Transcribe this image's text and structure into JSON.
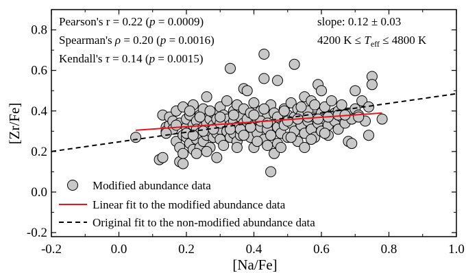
{
  "chart_data": {
    "type": "scatter",
    "xlabel": "[Na/Fe]",
    "ylabel": "[Zr/Fe]",
    "xlim": [
      -0.2,
      1.0
    ],
    "ylim": [
      -0.22,
      0.9
    ],
    "xticks": [
      -0.2,
      0.0,
      0.2,
      0.4,
      0.6,
      0.8,
      1.0
    ],
    "yticks": [
      -0.2,
      0.0,
      0.2,
      0.4,
      0.6,
      0.8
    ],
    "xtick_labels": [
      "-0.2",
      "0.0",
      "0.2",
      "0.4",
      "0.6",
      "0.8",
      "1.0"
    ],
    "ytick_labels": [
      "-0.2",
      "0.0",
      "0.2",
      "0.4",
      "0.6",
      "0.8"
    ],
    "grid": false,
    "annotations": {
      "pearson": "Pearson's r = 0.22 (p = 0.0009)",
      "spearman": "Spearman's ρ = 0.20 (p = 0.0016)",
      "kendall": "Kendall's τ = 0.14 (p = 0.0015)",
      "slope": "slope: 0.12 ± 0.03",
      "teff_range": "4200 K ≤ Teff ≤ 4800 K"
    },
    "legend": {
      "placement": "bottom-left",
      "entries": [
        "Modified abundance data",
        "Linear fit to the modified abundance data",
        "Original fit to the non-modified abundance data"
      ]
    },
    "colors": {
      "points_fill": "#c8c8c8",
      "points_edge": "#000000",
      "linear_fit": "#e8141b",
      "original_fit": "#000000"
    },
    "linear_fit": {
      "x": [
        0.05,
        0.78
      ],
      "y": [
        0.305,
        0.39
      ]
    },
    "original_fit": {
      "x": [
        -0.2,
        1.0
      ],
      "y": [
        0.2,
        0.485
      ]
    },
    "series": [
      {
        "name": "Modified abundance data",
        "points": [
          [
            0.05,
            0.27
          ],
          [
            0.12,
            0.16
          ],
          [
            0.13,
            0.17
          ],
          [
            0.13,
            0.38
          ],
          [
            0.14,
            0.32
          ],
          [
            0.14,
            0.3
          ],
          [
            0.15,
            0.33
          ],
          [
            0.15,
            0.37
          ],
          [
            0.16,
            0.35
          ],
          [
            0.16,
            0.31
          ],
          [
            0.17,
            0.25
          ],
          [
            0.17,
            0.4
          ],
          [
            0.18,
            0.22
          ],
          [
            0.18,
            0.34
          ],
          [
            0.18,
            0.15
          ],
          [
            0.19,
            0.19
          ],
          [
            0.19,
            0.28
          ],
          [
            0.19,
            0.14
          ],
          [
            0.2,
            0.32
          ],
          [
            0.2,
            0.36
          ],
          [
            0.2,
            0.27
          ],
          [
            0.21,
            0.24
          ],
          [
            0.21,
            0.3
          ],
          [
            0.21,
            0.38
          ],
          [
            0.22,
            0.21
          ],
          [
            0.22,
            0.33
          ],
          [
            0.22,
            0.43
          ],
          [
            0.23,
            0.26
          ],
          [
            0.23,
            0.35
          ],
          [
            0.23,
            0.31
          ],
          [
            0.24,
            0.22
          ],
          [
            0.24,
            0.29
          ],
          [
            0.24,
            0.38
          ],
          [
            0.25,
            0.32
          ],
          [
            0.25,
            0.41
          ],
          [
            0.25,
            0.25
          ],
          [
            0.26,
            0.34
          ],
          [
            0.26,
            0.28
          ],
          [
            0.26,
            0.47
          ],
          [
            0.27,
            0.22
          ],
          [
            0.27,
            0.36
          ],
          [
            0.27,
            0.3
          ],
          [
            0.28,
            0.27
          ],
          [
            0.28,
            0.39
          ],
          [
            0.28,
            0.33
          ],
          [
            0.29,
            0.29
          ],
          [
            0.29,
            0.36
          ],
          [
            0.29,
            0.17
          ],
          [
            0.3,
            0.31
          ],
          [
            0.3,
            0.42
          ],
          [
            0.3,
            0.26
          ],
          [
            0.31,
            0.34
          ],
          [
            0.31,
            0.38
          ],
          [
            0.31,
            0.23
          ],
          [
            0.32,
            0.3
          ],
          [
            0.32,
            0.45
          ],
          [
            0.32,
            0.36
          ],
          [
            0.33,
            0.27
          ],
          [
            0.33,
            0.33
          ],
          [
            0.33,
            0.61
          ],
          [
            0.34,
            0.4
          ],
          [
            0.34,
            0.29
          ],
          [
            0.34,
            0.35
          ],
          [
            0.35,
            0.25
          ],
          [
            0.35,
            0.43
          ],
          [
            0.35,
            0.32
          ],
          [
            0.36,
            0.37
          ],
          [
            0.36,
            0.28
          ],
          [
            0.37,
            0.34
          ],
          [
            0.37,
            0.41
          ],
          [
            0.37,
            0.51
          ],
          [
            0.38,
            0.3
          ],
          [
            0.38,
            0.36
          ],
          [
            0.38,
            0.5
          ],
          [
            0.39,
            0.27
          ],
          [
            0.39,
            0.39
          ],
          [
            0.4,
            0.33
          ],
          [
            0.4,
            0.44
          ],
          [
            0.4,
            0.22
          ],
          [
            0.41,
            0.36
          ],
          [
            0.41,
            0.29
          ],
          [
            0.42,
            0.4
          ],
          [
            0.42,
            0.32
          ],
          [
            0.43,
            0.68
          ],
          [
            0.43,
            0.56
          ],
          [
            0.43,
            0.26
          ],
          [
            0.44,
            0.37
          ],
          [
            0.44,
            0.31
          ],
          [
            0.45,
            0.43
          ],
          [
            0.45,
            0.28
          ],
          [
            0.45,
            0.1
          ],
          [
            0.46,
            0.35
          ],
          [
            0.46,
            0.39
          ],
          [
            0.46,
            0.19
          ],
          [
            0.47,
            0.32
          ],
          [
            0.47,
            0.55
          ],
          [
            0.47,
            0.24
          ],
          [
            0.48,
            0.36
          ],
          [
            0.48,
            0.29
          ],
          [
            0.49,
            0.41
          ],
          [
            0.49,
            0.33
          ],
          [
            0.5,
            0.27
          ],
          [
            0.5,
            0.38
          ],
          [
            0.51,
            0.34
          ],
          [
            0.51,
            0.44
          ],
          [
            0.52,
            0.63
          ],
          [
            0.52,
            0.3
          ],
          [
            0.52,
            0.37
          ],
          [
            0.53,
            0.25
          ],
          [
            0.53,
            0.41
          ],
          [
            0.54,
            0.33
          ],
          [
            0.54,
            0.38
          ],
          [
            0.55,
            0.29
          ],
          [
            0.55,
            0.47
          ],
          [
            0.55,
            0.22
          ],
          [
            0.56,
            0.35
          ],
          [
            0.56,
            0.4
          ],
          [
            0.57,
            0.31
          ],
          [
            0.57,
            0.45
          ],
          [
            0.58,
            0.37
          ],
          [
            0.58,
            0.27
          ],
          [
            0.59,
            0.53
          ],
          [
            0.59,
            0.34
          ],
          [
            0.6,
            0.39
          ],
          [
            0.6,
            0.5
          ],
          [
            0.6,
            0.3
          ],
          [
            0.61,
            0.36
          ],
          [
            0.61,
            0.42
          ],
          [
            0.62,
            0.33
          ],
          [
            0.62,
            0.28
          ],
          [
            0.63,
            0.38
          ],
          [
            0.63,
            0.45
          ],
          [
            0.64,
            0.35
          ],
          [
            0.64,
            0.39
          ],
          [
            0.65,
            0.31
          ],
          [
            0.65,
            0.4
          ],
          [
            0.66,
            0.37
          ],
          [
            0.66,
            0.43
          ],
          [
            0.67,
            0.34
          ],
          [
            0.68,
            0.39
          ],
          [
            0.68,
            0.25
          ],
          [
            0.69,
            0.36
          ],
          [
            0.69,
            0.24
          ],
          [
            0.7,
            0.5
          ],
          [
            0.7,
            0.41
          ],
          [
            0.71,
            0.38
          ],
          [
            0.72,
            0.45
          ],
          [
            0.73,
            0.35
          ],
          [
            0.74,
            0.42
          ],
          [
            0.74,
            0.28
          ],
          [
            0.75,
            0.57
          ],
          [
            0.75,
            0.53
          ],
          [
            0.78,
            0.36
          ],
          [
            0.14,
            0.29
          ],
          [
            0.17,
            0.33
          ],
          [
            0.2,
            0.29
          ],
          [
            0.22,
            0.28
          ],
          [
            0.25,
            0.3
          ],
          [
            0.28,
            0.31
          ],
          [
            0.3,
            0.34
          ],
          [
            0.33,
            0.31
          ],
          [
            0.36,
            0.31
          ],
          [
            0.39,
            0.32
          ],
          [
            0.42,
            0.35
          ],
          [
            0.44,
            0.34
          ],
          [
            0.47,
            0.37
          ],
          [
            0.5,
            0.35
          ],
          [
            0.53,
            0.36
          ],
          [
            0.56,
            0.37
          ],
          [
            0.59,
            0.36
          ],
          [
            0.62,
            0.37
          ],
          [
            0.65,
            0.38
          ],
          [
            0.67,
            0.38
          ],
          [
            0.71,
            0.37
          ],
          [
            0.19,
            0.42
          ],
          [
            0.21,
            0.4
          ],
          [
            0.24,
            0.37
          ],
          [
            0.27,
            0.4
          ],
          [
            0.3,
            0.37
          ],
          [
            0.34,
            0.38
          ],
          [
            0.4,
            0.38
          ],
          [
            0.43,
            0.41
          ],
          [
            0.49,
            0.4
          ],
          [
            0.54,
            0.42
          ],
          [
            0.58,
            0.43
          ],
          [
            0.37,
            0.28
          ],
          [
            0.41,
            0.25
          ],
          [
            0.44,
            0.23
          ],
          [
            0.48,
            0.22
          ],
          [
            0.51,
            0.27
          ],
          [
            0.57,
            0.26
          ],
          [
            0.61,
            0.29
          ],
          [
            0.26,
            0.2
          ],
          [
            0.23,
            0.19
          ],
          [
            0.35,
            0.22
          ]
        ]
      }
    ]
  }
}
